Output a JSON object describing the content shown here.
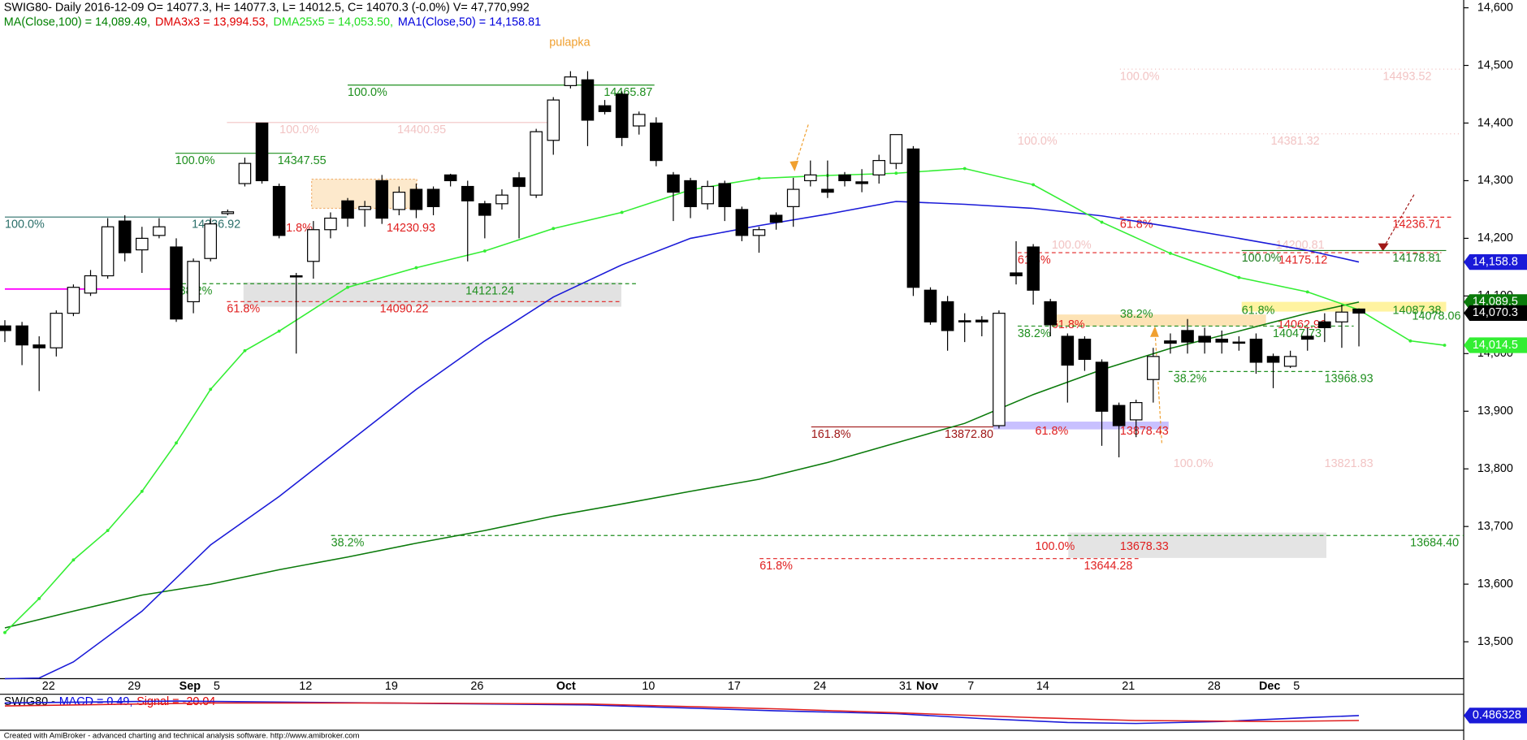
{
  "header": {
    "title": "SWIG80- Daily 2016-12-09 O= 14077.3, H= 14077.3, L= 14012.5, C= 14070.3 (-0.0%) V= 47,770,992",
    "indicators": [
      {
        "text": "MA(Close,100) = 14,089.49,",
        "color": "#008000"
      },
      {
        "text": "DMA3x3 = 13,994.53,",
        "color": "#e00000"
      },
      {
        "text": "DMA25x5 = 14,053.50,",
        "color": "#22dd22"
      },
      {
        "text": "MA1(Close,50) = 14,158.81",
        "color": "#0000dd"
      }
    ]
  },
  "chart_data": {
    "type": "candlestick",
    "categories": [
      null,
      null,
      "22",
      null,
      null,
      null,
      null,
      "29",
      null,
      null,
      "Sep",
      null,
      "5",
      null,
      null,
      null,
      null,
      "12",
      null,
      null,
      null,
      null,
      "19",
      null,
      null,
      null,
      null,
      "26",
      null,
      null,
      null,
      null,
      "Oct",
      null,
      null,
      null,
      null,
      "10",
      null,
      null,
      null,
      null,
      "17",
      null,
      null,
      null,
      null,
      "24",
      null,
      null,
      null,
      null,
      "31",
      "Nov",
      null,
      null,
      "7",
      null,
      null,
      null,
      "14",
      null,
      null,
      null,
      null,
      "21",
      null,
      null,
      null,
      null,
      "28",
      null,
      null,
      "Dec",
      null,
      "5",
      null,
      null,
      null,
      null
    ],
    "open": [
      14048,
      14048,
      14015,
      14010,
      14070,
      14105,
      14135,
      14230,
      14180,
      14205,
      14185,
      14090,
      14165,
      14243,
      14295,
      14400,
      14290,
      14135,
      14160,
      14215,
      14265,
      14250,
      14300,
      14250,
      14285,
      14285,
      14310,
      14290,
      14260,
      14260,
      14305,
      14275,
      14370,
      14465,
      14475,
      14430,
      14450,
      14395,
      14400,
      14310,
      14300,
      14260,
      14295,
      14250,
      14205,
      14240,
      14255,
      14300,
      14285,
      14310,
      14298,
      14310,
      14330,
      14355,
      14110,
      14090,
      14057,
      14058,
      13875,
      14140,
      14185,
      14090,
      14030,
      14025,
      13985,
      13910,
      13885,
      13955,
      14022,
      14040,
      14030,
      14025,
      14020,
      14025,
      13995,
      13978,
      14030,
      14055,
      14055,
      14077.3
    ],
    "high": [
      14058,
      14055,
      14030,
      14075,
      14120,
      14145,
      14235,
      14240,
      14220,
      14235,
      14200,
      14165,
      14235,
      14250,
      14340,
      14400,
      14295,
      14140,
      14230,
      14245,
      14270,
      14265,
      14310,
      14290,
      14295,
      14290,
      14312,
      14300,
      14265,
      14285,
      14315,
      14390,
      14445,
      14490,
      14490,
      14440,
      14455,
      14420,
      14410,
      14315,
      14305,
      14300,
      14300,
      14255,
      14220,
      14245,
      14305,
      14335,
      14335,
      14315,
      14320,
      14345,
      14380,
      14360,
      14115,
      14100,
      14070,
      14065,
      14075,
      14195,
      14190,
      14095,
      14035,
      14030,
      13990,
      13915,
      13920,
      14010,
      14035,
      14060,
      14045,
      14040,
      14030,
      14035,
      14000,
      14005,
      14045,
      14070,
      14085,
      14077.3
    ],
    "low": [
      14020,
      13980,
      13935,
      13995,
      14065,
      14100,
      14130,
      14160,
      14140,
      14200,
      14055,
      14070,
      14160,
      14240,
      14290,
      14295,
      14200,
      14000,
      14130,
      14200,
      14220,
      14220,
      14225,
      14240,
      14235,
      14240,
      14290,
      14160,
      14200,
      14250,
      14200,
      14270,
      14345,
      14460,
      14360,
      14415,
      14360,
      14380,
      14325,
      14230,
      14235,
      14250,
      14230,
      14195,
      14175,
      14215,
      14220,
      14290,
      14270,
      14290,
      14280,
      14295,
      14320,
      14100,
      14050,
      14005,
      14020,
      14030,
      13870,
      14120,
      14085,
      14030,
      13915,
      13970,
      13840,
      13820,
      13855,
      13915,
      14000,
      14000,
      14000,
      14000,
      14005,
      13965,
      13940,
      13975,
      14005,
      14020,
      14010,
      14012.5
    ],
    "close": [
      14040,
      14015,
      14010,
      14070,
      14115,
      14135,
      14220,
      14175,
      14200,
      14220,
      14060,
      14160,
      14225,
      14246,
      14330,
      14300,
      14205,
      14133,
      14215,
      14235,
      14235,
      14255,
      14235,
      14280,
      14250,
      14255,
      14300,
      14265,
      14240,
      14275,
      14290,
      14385,
      14440,
      14480,
      14405,
      14420,
      14375,
      14415,
      14335,
      14280,
      14255,
      14290,
      14255,
      14205,
      14215,
      14228,
      14285,
      14310,
      14280,
      14300,
      14295,
      14335,
      14380,
      14115,
      14055,
      14040,
      14055,
      14055,
      14070,
      14135,
      14110,
      14050,
      13980,
      13990,
      13900,
      13875,
      13915,
      13995,
      14018,
      14020,
      14020,
      14020,
      14018,
      13985,
      13985,
      13995,
      14025,
      14045,
      14072,
      14070.3
    ],
    "series": [
      {
        "color": "#0a7a0a",
        "x": [
          0,
          4,
          8,
          12,
          16,
          20,
          24,
          28,
          32,
          36,
          40,
          44,
          48,
          52,
          56,
          60,
          64,
          68,
          72,
          76,
          79
        ],
        "values": [
          13524,
          13553,
          13581,
          13600,
          13625,
          13647,
          13671,
          13693,
          13718,
          13739,
          13761,
          13782,
          13811,
          13845,
          13879,
          13929,
          13972,
          14009,
          14039,
          14070,
          14089.49
        ]
      },
      {
        "color": "#1a1ad8",
        "x": [
          0,
          2,
          4,
          8,
          12,
          16,
          20,
          24,
          28,
          32,
          36,
          40,
          44,
          48,
          52,
          56,
          60,
          64,
          68,
          72,
          76,
          79
        ],
        "values": [
          13436,
          13437,
          13465,
          13553,
          13668,
          13752,
          13845,
          13938,
          14022,
          14098,
          14154,
          14200,
          14222,
          14242,
          14264,
          14259,
          14252,
          14239,
          14220,
          14200,
          14179,
          14158.81
        ]
      },
      {
        "color": "#33ee33",
        "dots": true,
        "x": [
          0,
          2,
          4,
          6,
          8,
          10,
          12,
          14,
          16,
          20,
          24,
          28,
          32,
          36,
          40,
          44,
          48,
          52,
          56,
          60,
          64,
          68,
          72,
          76,
          79,
          82,
          84
        ],
        "values": [
          13516,
          13575,
          13642,
          13693,
          13761,
          13845,
          13938,
          14005,
          14039,
          14115,
          14149,
          14178,
          14217,
          14245,
          14284,
          14304,
          14309,
          14313,
          14321,
          14293,
          14228,
          14174,
          14132,
          14107,
          14076,
          14022,
          14014.5
        ]
      }
    ],
    "ylim": [
      13436,
      14613.5
    ],
    "yticks": [
      {
        "value": 13500,
        "label": "13,500"
      },
      {
        "value": 13600,
        "label": "13,600"
      },
      {
        "value": 13700,
        "label": "13,700"
      },
      {
        "value": 13800,
        "label": "13,800"
      },
      {
        "value": 13900,
        "label": "13,900"
      },
      {
        "value": 14000,
        "label": "14,000"
      },
      {
        "value": 14100,
        "label": "14,100"
      },
      {
        "value": 14200,
        "label": "14,200"
      },
      {
        "value": 14300,
        "label": "14,300"
      },
      {
        "value": 14400,
        "label": "14,400"
      },
      {
        "value": 14500,
        "label": "14,500"
      },
      {
        "value": 14600,
        "label": "14,600"
      }
    ],
    "price_tags": [
      {
        "value": 14158.81,
        "label": "14,158.8",
        "color": "#1a1ad8"
      },
      {
        "value": 14089.49,
        "label": "14,089.5",
        "color": "#0a7a0a"
      },
      {
        "value": 14070.3,
        "label": "14,070.3",
        "color": "#000000"
      },
      {
        "value": 14014.5,
        "label": "14,014.5",
        "color": "#33ee33"
      }
    ],
    "horizontal_line": {
      "value": 14112,
      "color": "#ff00ff"
    },
    "annotations": [
      {
        "percent": [
          "100.0%"
        ],
        "level": 14236.92,
        "color": "#2b6f6a",
        "line": "solid"
      },
      {
        "percent": [
          "100.0%"
        ],
        "level": 14347.55,
        "color": "#1f8f1f",
        "line": "solid"
      },
      {
        "percent": [
          "100.0%"
        ],
        "level": 14465.87,
        "color": "#1f8f1f",
        "line": "solid"
      },
      {
        "percent": [
          "100.0%"
        ],
        "level": 14400.95,
        "color": "#f2c4c4",
        "line": "solid"
      },
      {
        "percent": [
          "61.8%"
        ],
        "level": 14230.93,
        "color": "#e02020"
      },
      {
        "percent": [
          "38.2%"
        ],
        "level": 14121.24,
        "color": "#1f8f1f",
        "line": "dashed"
      },
      {
        "percent": [
          "61.8%"
        ],
        "level": 14090.22,
        "color": "#e02020",
        "line": "dashed"
      },
      {
        "percent": [
          "100.0%"
        ],
        "level": 14493.52,
        "color": "#f2c4c4",
        "line": "dotted"
      },
      {
        "percent": [
          "100.0%"
        ],
        "level": 14381.32,
        "color": "#f2c4c4",
        "line": "dotted"
      },
      {
        "percent": [
          "61.8%"
        ],
        "level": 14236.71,
        "color": "#e02020",
        "line": "dashed"
      },
      {
        "percent": [
          "100.0%"
        ],
        "level": 14200.81,
        "color": "#f2c4c4"
      },
      {
        "percent": [
          "61.8%"
        ],
        "level": 14175.12,
        "color": "#e02020",
        "line": "dashed"
      },
      {
        "percent": [
          "100.0%"
        ],
        "level": 14178.81,
        "color": "#1f7f1f",
        "line": "solid"
      },
      {
        "percent": [
          "61.8%",
          "38.2%"
        ],
        "level": 14062.96,
        "color": "#e02020"
      },
      {
        "percent": [
          "38.2%"
        ],
        "level": 14047.73,
        "color": "#1f8f1f",
        "line": "dashed"
      },
      {
        "percent": [
          "61.8%"
        ],
        "level": 14087.38,
        "color": "#1f8f1f"
      },
      {
        "level": 14078.06,
        "color": "#1f8f1f"
      },
      {
        "percent": [
          "38.2%"
        ],
        "level": 13968.93,
        "color": "#1f8f1f",
        "line": "dashed"
      },
      {
        "percent": [
          "61.8%"
        ],
        "level": 13878.43,
        "color": "#e02020"
      },
      {
        "percent": [
          "161.8%"
        ],
        "level": {
          "value": 13872.8,
          "label": "13872.80"
        },
        "color": "#a01818",
        "line": "solid"
      },
      {
        "percent": [
          "100.0%"
        ],
        "level": 13821.83,
        "color": "#f2c4c4"
      },
      {
        "percent": [
          "38.2%"
        ],
        "level": {
          "value": 13684.4,
          "label": "13684.40"
        },
        "color": "#1f8f1f",
        "line": "dashed"
      },
      {
        "percent": [
          "100.0%"
        ],
        "level": 13678.33,
        "color": "#e02020"
      },
      {
        "percent": [
          "61.8%"
        ],
        "level": 13644.28,
        "color": "#e02020",
        "line": "dashed"
      }
    ],
    "note": "pulapka"
  },
  "macd": {
    "parts": [
      {
        "text": "SWIG80 -",
        "color": "#000000"
      },
      {
        "text": "MACD = 0.49,",
        "color": "#0000dd"
      },
      {
        "text": "Signal = -20.04",
        "color": "#e00000"
      }
    ],
    "ylim": [
      -60,
      88
    ],
    "series": [
      {
        "color": "#1a1ad8",
        "x": [
          0,
          10,
          22,
          34,
          45,
          52,
          57,
          62,
          66,
          71,
          76,
          79
        ],
        "values": [
          52,
          60,
          52,
          44,
          20,
          8,
          -12,
          -28,
          -32,
          -24,
          -8,
          0.49
        ]
      },
      {
        "color": "#e02020",
        "x": [
          0,
          12,
          22,
          34,
          45,
          52,
          60,
          66,
          74,
          79
        ],
        "values": [
          40,
          52,
          52,
          48,
          28,
          12,
          -8,
          -20,
          -24,
          -20.04
        ]
      }
    ],
    "tag": {
      "value": 0.486328,
      "label": "0.486328",
      "color": "#1a1ad8"
    }
  },
  "footer": "Created with AmiBroker - advanced charting and technical analysis software. http://www.amibroker.com"
}
